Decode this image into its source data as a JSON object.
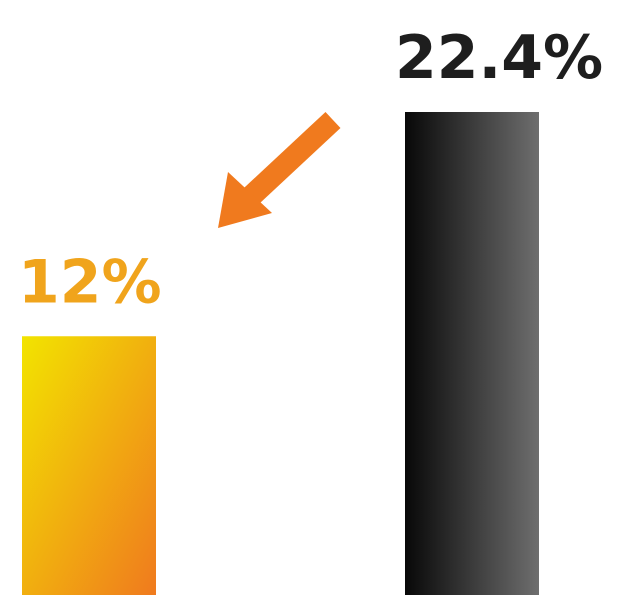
{
  "chart_data": {
    "type": "bar",
    "categories": [
      null,
      null
    ],
    "values": [
      12,
      22.4
    ],
    "value_labels": [
      "12%",
      "22.4%"
    ],
    "colors": [
      [
        "#f2e400",
        "#f07a1e"
      ],
      [
        "#080808",
        "#6e6e6e"
      ]
    ],
    "label_colors": [
      "#f0a41c",
      "#1e1e1e"
    ]
  }
}
